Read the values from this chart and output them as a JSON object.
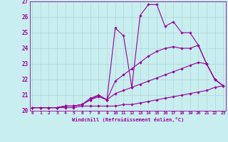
{
  "xlabel": "Windchill (Refroidissement éolien,°C)",
  "bg_color": "#c8eef0",
  "line_color": "#990099",
  "grid_color": "#b0d8d8",
  "xmin": 0,
  "xmax": 23,
  "ymin": 20,
  "ymax": 27,
  "series": [
    [
      20.2,
      20.2,
      20.2,
      20.2,
      20.3,
      20.3,
      20.4,
      20.8,
      21.0,
      20.7,
      25.3,
      24.8,
      21.5,
      26.1,
      26.8,
      26.8,
      25.4,
      25.7,
      25.0,
      25.0,
      24.2,
      23.0,
      22.0,
      21.6
    ],
    [
      20.2,
      20.2,
      20.2,
      20.2,
      20.3,
      20.3,
      20.4,
      20.7,
      21.0,
      20.7,
      21.9,
      22.3,
      22.7,
      23.1,
      23.5,
      23.8,
      24.0,
      24.1,
      24.0,
      24.0,
      24.2,
      23.0,
      22.0,
      21.6
    ],
    [
      20.2,
      20.2,
      20.2,
      20.2,
      20.3,
      20.3,
      20.4,
      20.7,
      20.9,
      20.7,
      21.1,
      21.3,
      21.5,
      21.7,
      21.9,
      22.1,
      22.3,
      22.5,
      22.7,
      22.9,
      23.1,
      23.0,
      22.0,
      21.6
    ],
    [
      20.2,
      20.2,
      20.2,
      20.2,
      20.2,
      20.2,
      20.3,
      20.3,
      20.3,
      20.3,
      20.3,
      20.4,
      20.4,
      20.5,
      20.6,
      20.7,
      20.8,
      20.9,
      21.0,
      21.1,
      21.2,
      21.3,
      21.5,
      21.6
    ]
  ]
}
